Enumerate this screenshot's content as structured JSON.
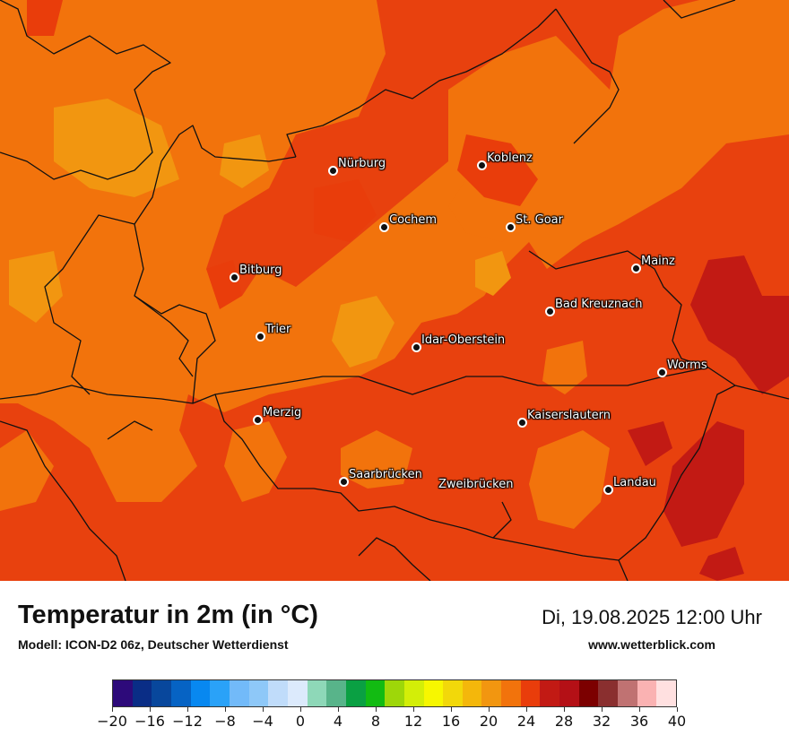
{
  "map": {
    "base_color": "#e8410e",
    "cities": [
      {
        "name": "Nürburg"
      },
      {
        "name": "Koblenz"
      },
      {
        "name": "Cochem"
      },
      {
        "name": "St. Goar"
      },
      {
        "name": "Mainz"
      },
      {
        "name": "Bitburg"
      },
      {
        "name": "Bad Kreuznach"
      },
      {
        "name": "Trier"
      },
      {
        "name": "Idar-Oberstein"
      },
      {
        "name": "Worms"
      },
      {
        "name": "Merzig"
      },
      {
        "name": "Kaiserslautern"
      },
      {
        "name": "Saarbrücken"
      },
      {
        "name": "Zweibrücken"
      },
      {
        "name": "Landau"
      }
    ]
  },
  "header": {
    "title": "Temperatur in 2m (in °C)",
    "model": "Modell: ICON-D2 06z, Deutscher Wetterdienst",
    "datetime": "Di, 19.08.2025 12:00 Uhr",
    "website": "www.wetterblick.com"
  },
  "legend": {
    "colors": [
      "#2d0a7a",
      "#0a2d86",
      "#08479c",
      "#0663c4",
      "#0888f0",
      "#2aa2f8",
      "#72baf9",
      "#8ec8f8",
      "#c0dcfa",
      "#dceafc",
      "#8ed8b8",
      "#58b48a",
      "#0aa043",
      "#12bb12",
      "#9ed709",
      "#d3ee08",
      "#f7f700",
      "#f2d80a",
      "#f4b70b",
      "#f29610",
      "#f2730c",
      "#e93d0b",
      "#c21a14",
      "#b41016",
      "#7c0000",
      "#8a2f2f",
      "#c07272",
      "#fab2b2",
      "#ffe0e0"
    ],
    "ticks": [
      "−20",
      "−16",
      "−12",
      "−8",
      "−4",
      "0",
      "4",
      "8",
      "12",
      "16",
      "20",
      "24",
      "28",
      "32",
      "36",
      "40"
    ]
  }
}
